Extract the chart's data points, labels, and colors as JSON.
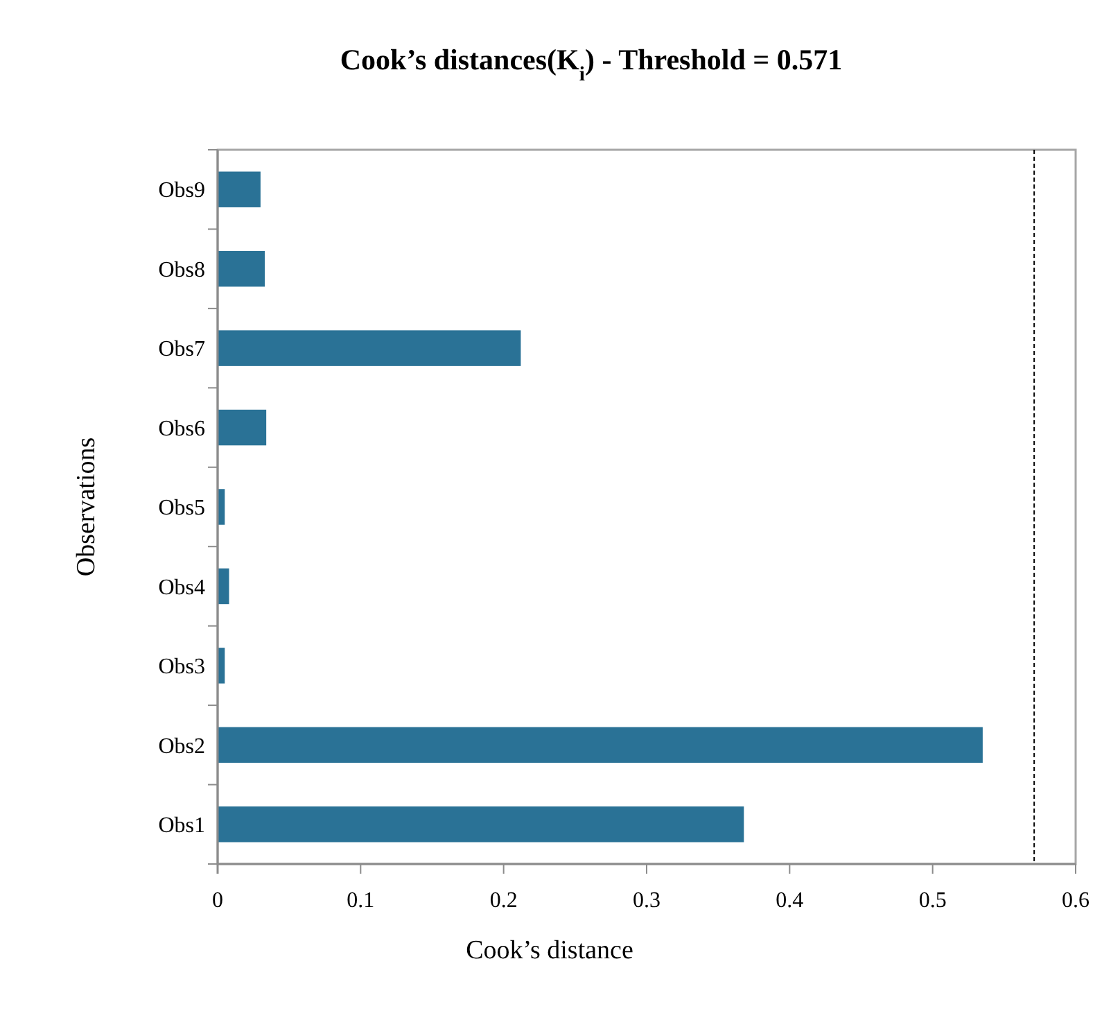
{
  "chart_data": {
    "type": "bar",
    "orientation": "horizontal",
    "title": "Cook’s distances(K$_{i}$) - Threshold = 0.571",
    "xlabel": "Cook’s distance",
    "ylabel": "Observations",
    "categories": [
      "Obs9",
      "Obs8",
      "Obs7",
      "Obs6",
      "Obs5",
      "Obs4",
      "Obs3",
      "Obs2",
      "Obs1"
    ],
    "values": [
      0.03,
      0.033,
      0.212,
      0.034,
      0.005,
      0.008,
      0.005,
      0.535,
      0.368
    ],
    "color": "#2a7296",
    "xlim": [
      0,
      0.6
    ],
    "xticks": [
      0,
      0.1,
      0.2,
      0.3,
      0.4,
      0.5,
      0.6
    ],
    "grid": false,
    "ref_lines": [
      {
        "axis": "x",
        "value": 0.571,
        "color": "#000000",
        "line_style": "dashed"
      }
    ]
  }
}
